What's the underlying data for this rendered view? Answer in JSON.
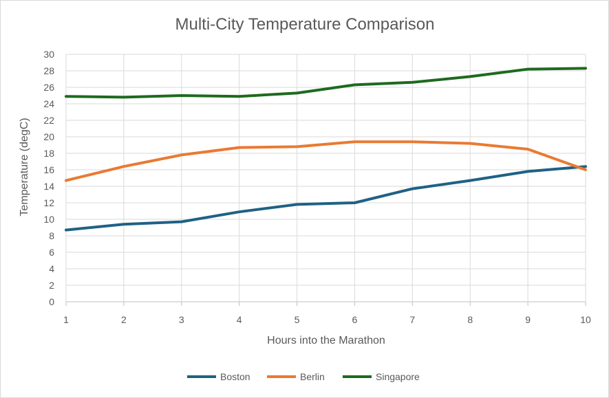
{
  "chart_data": {
    "type": "line",
    "title": "Multi-City Temperature Comparison",
    "xlabel": "Hours into the Marathon",
    "ylabel": "Temperature (degC)",
    "x": [
      1,
      2,
      3,
      4,
      5,
      6,
      7,
      8,
      9,
      10
    ],
    "xlim": [
      1,
      10
    ],
    "ylim": [
      0,
      30
    ],
    "ytick_step": 2,
    "grid": true,
    "legend_position": "bottom",
    "series": [
      {
        "name": "Boston",
        "color": "#1f6184",
        "values": [
          8.7,
          9.4,
          9.7,
          10.9,
          11.8,
          12.0,
          13.7,
          14.7,
          15.8,
          16.4
        ]
      },
      {
        "name": "Berlin",
        "color": "#e97a32",
        "values": [
          14.7,
          16.4,
          17.8,
          18.7,
          18.8,
          19.4,
          19.4,
          19.2,
          18.5,
          16.0
        ]
      },
      {
        "name": "Singapore",
        "color": "#1e6a1f",
        "values": [
          24.9,
          24.8,
          25.0,
          24.9,
          25.3,
          26.3,
          26.6,
          27.3,
          28.2,
          28.3
        ]
      }
    ]
  }
}
